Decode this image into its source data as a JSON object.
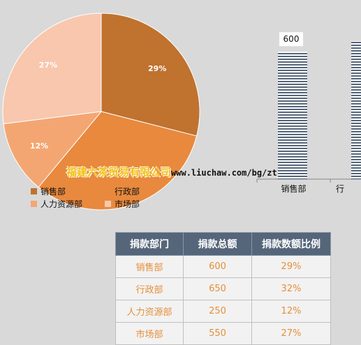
{
  "chart_data": [
    {
      "type": "pie",
      "slices": [
        {
          "label": "销售部",
          "value": 29,
          "display": "29%",
          "color": "#c0722f"
        },
        {
          "label": "行政部",
          "value": 32,
          "display": "",
          "color": "#e8893e"
        },
        {
          "label": "人力资源部",
          "value": 12,
          "display": "12%",
          "color": "#f4a672"
        },
        {
          "label": "市场部",
          "value": 27,
          "display": "27%",
          "color": "#f8c7ad"
        }
      ],
      "legend": {
        "position": "bottom",
        "items": [
          "销售部",
          "行政部",
          "人力资源部",
          "市场部"
        ]
      }
    },
    {
      "type": "bar",
      "categories": [
        "销售部",
        "行"
      ],
      "values": [
        600,
        650
      ],
      "data_labels": [
        "600",
        ""
      ],
      "pattern": "horizontal-stripes",
      "bar_color": "#55667a"
    }
  ],
  "watermark": {
    "company": "福建六茶贸易有限公司",
    "url": "www.liuchaw.com/bg/zt"
  },
  "table": {
    "headers": [
      "捐款部门",
      "捐款总额",
      "捐款数额比例"
    ],
    "rows": [
      [
        "销售部",
        "600",
        "29%"
      ],
      [
        "行政部",
        "650",
        "32%"
      ],
      [
        "人力资源部",
        "250",
        "12%"
      ],
      [
        "市场部",
        "550",
        "27%"
      ]
    ]
  }
}
